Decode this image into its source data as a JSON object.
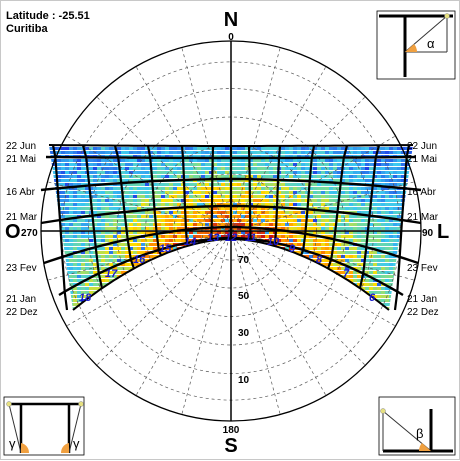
{
  "header": {
    "latitude": "Latitude : -25.51",
    "location": "Curitiba"
  },
  "cardinals": {
    "north": "N",
    "south": "S",
    "east": "L",
    "west": "O",
    "north_deg": "0",
    "south_deg": "180",
    "east_deg": "90",
    "west_deg": "270"
  },
  "altitude_labels": [
    "10",
    "30",
    "50",
    "70"
  ],
  "date_labels_left": [
    "22 Jun",
    "21 Mai",
    "16 Abr",
    "21 Mar",
    "23 Fev",
    "21 Jan",
    "22 Dez"
  ],
  "date_labels_right": [
    "22 Jun",
    "21 Mai",
    "16 Abr",
    "21 Mar",
    "23 Fev",
    "21 Jan",
    "22 Dez"
  ],
  "hour_labels": [
    "18",
    "17",
    "16",
    "15",
    "14",
    "13",
    "12",
    "11",
    "10",
    "9",
    "8",
    "7",
    "6"
  ],
  "angle_labels": {
    "alpha": "α",
    "beta": "β",
    "gamma": "γ"
  },
  "colors": {
    "grid": "#555555",
    "hour_label": "#1a1acc",
    "frame": "#000000",
    "heat_low": "#1e3cff",
    "heat_mid": "#ffe000",
    "heat_high": "#c81010",
    "icon_orange": "#f0a040",
    "icon_yellow": "#e6e080"
  }
}
